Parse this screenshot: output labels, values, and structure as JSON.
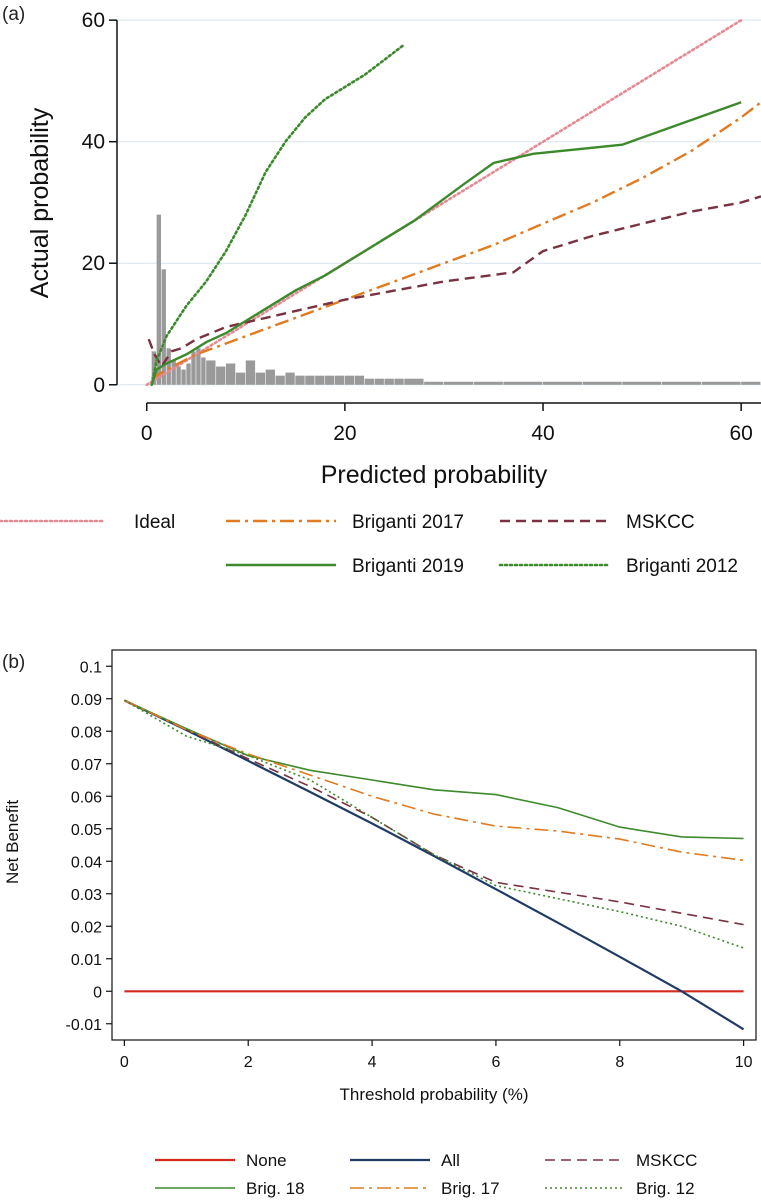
{
  "colors": {
    "ideal": "#e48a93",
    "briganti2017": "#e07b22",
    "mskcc": "#7a3140",
    "briganti2019": "#3d8a2c",
    "briganti2012": "#3d8a2c",
    "histogram": "#9a9a9a",
    "none": "#d42a1e",
    "all": "#1f3b66",
    "grid": "#d8e4ea"
  },
  "chart_data": [
    {
      "type": "line",
      "panel_label": "(a)",
      "xlabel": "Predicted probability",
      "ylabel": "Actual probability",
      "xlim": [
        -3,
        62
      ],
      "ylim": [
        -3,
        62
      ],
      "xticks": [
        0,
        20,
        40,
        60
      ],
      "yticks": [
        0,
        20,
        40,
        60
      ],
      "grid": true,
      "legend_position": "bottom",
      "series": [
        {
          "name": "Ideal",
          "style": "dotted",
          "color_key": "ideal",
          "x": [
            0,
            60
          ],
          "y": [
            0,
            60
          ]
        },
        {
          "name": "Briganti 2017",
          "style": "dashdot",
          "color_key": "briganti2017",
          "x": [
            0.5,
            2,
            5,
            10,
            15,
            20,
            25,
            30,
            35,
            40,
            45,
            50,
            55,
            60,
            62
          ],
          "y": [
            1,
            2.5,
            5,
            8,
            11,
            14,
            17,
            20,
            23,
            26.5,
            30,
            34,
            38.5,
            44,
            46.5
          ]
        },
        {
          "name": "MSKCC",
          "style": "dashed",
          "color_key": "mskcc",
          "x": [
            0.2,
            0.8,
            1.5,
            2.5,
            3.5,
            5,
            8,
            12,
            16,
            20,
            25,
            30,
            37,
            40,
            45,
            50,
            55,
            60,
            62
          ],
          "y": [
            7.5,
            5,
            3,
            5.5,
            6,
            7.5,
            9.5,
            11,
            12.5,
            14,
            15.5,
            17,
            18.5,
            22,
            24.5,
            26.5,
            28.5,
            30,
            31
          ]
        },
        {
          "name": "Briganti 2019",
          "style": "solid",
          "color_key": "briganti2019",
          "x": [
            0.5,
            1,
            2,
            4,
            6,
            8,
            12,
            15,
            18,
            22,
            27,
            32,
            35,
            39,
            48,
            60
          ],
          "y": [
            0,
            2.5,
            3.5,
            5,
            7,
            8.5,
            12.5,
            15.5,
            18,
            22,
            27,
            33,
            36.5,
            38,
            39.5,
            46.5
          ]
        },
        {
          "name": "Briganti 2012",
          "style": "dotted",
          "color_key": "briganti2012",
          "x": [
            0.5,
            1,
            2,
            4,
            6,
            8,
            10,
            12,
            14,
            16,
            18,
            20,
            22,
            24,
            26
          ],
          "y": [
            0,
            4,
            8,
            13,
            17,
            22,
            28,
            35,
            40,
            44,
            47,
            49,
            51,
            53.5,
            56
          ]
        }
      ],
      "histogram": {
        "bins": [
          0.5,
          1,
          1.5,
          2,
          2.5,
          3,
          3.5,
          4,
          4.5,
          5,
          5.5,
          6,
          7,
          8,
          9,
          10,
          11,
          12,
          13,
          14,
          15,
          16,
          17,
          18,
          19,
          20,
          21,
          22,
          23,
          24,
          25,
          26,
          28,
          30,
          33,
          36,
          40,
          44,
          48,
          52,
          56,
          60
        ],
        "heights": [
          5.5,
          28,
          19,
          6,
          4,
          3,
          2.5,
          3.5,
          5.5,
          6,
          4.5,
          4,
          3,
          3.5,
          2,
          4,
          2,
          2.5,
          1.5,
          2,
          1.5,
          1.5,
          1.5,
          1.5,
          1.5,
          1.5,
          1.5,
          1,
          1,
          1,
          1,
          1,
          0.5,
          0.5,
          0.5,
          0.5,
          0.5,
          0.5,
          0.5,
          0.5,
          0.5,
          0.5
        ]
      }
    },
    {
      "type": "line",
      "panel_label": "(b)",
      "xlabel": "Threshold probability (%)",
      "ylabel": "Net Benefit",
      "xlim": [
        -0.2,
        10.2
      ],
      "ylim": [
        -0.015,
        0.105
      ],
      "xticks": [
        0,
        2,
        4,
        6,
        8,
        10
      ],
      "yticks": [
        -0.01,
        0,
        0.01,
        0.02,
        0.03,
        0.04,
        0.05,
        0.06,
        0.07,
        0.08,
        0.09,
        0.1
      ],
      "ytick_labels": [
        "-0.01",
        "0",
        "0.01",
        "0.02",
        "0.03",
        "0.04",
        "0.05",
        "0.06",
        "0.07",
        "0.08",
        "0.09",
        "0.1"
      ],
      "grid": false,
      "legend_position": "bottom",
      "series": [
        {
          "name": "None",
          "style": "solid",
          "color_key": "none",
          "x": [
            0,
            10
          ],
          "y": [
            0,
            0
          ]
        },
        {
          "name": "All",
          "style": "solid",
          "color_key": "all",
          "x": [
            0,
            1,
            2,
            3,
            4,
            5,
            6,
            7,
            8,
            9,
            10
          ],
          "y": [
            0.0895,
            0.0804,
            0.0709,
            0.0613,
            0.0516,
            0.0416,
            0.0314,
            0.0211,
            0.0106,
            0.0,
            -0.0117
          ]
        },
        {
          "name": "MSKCC",
          "style": "dashed",
          "color_key": "mskcc",
          "x": [
            0,
            1,
            2,
            3,
            4,
            5,
            6,
            7,
            8,
            9,
            10
          ],
          "y": [
            0.0895,
            0.0805,
            0.0715,
            0.063,
            0.0535,
            0.042,
            0.0335,
            0.0305,
            0.0275,
            0.024,
            0.0205
          ]
        },
        {
          "name": "Brig. 18",
          "style": "solid",
          "color_key": "briganti2019",
          "x": [
            0,
            1,
            2,
            3,
            4,
            5,
            6,
            7,
            8,
            9,
            10
          ],
          "y": [
            0.0895,
            0.0808,
            0.0725,
            0.068,
            0.065,
            0.062,
            0.0605,
            0.0565,
            0.0505,
            0.0475,
            0.047
          ]
        },
        {
          "name": "Brig. 17",
          "style": "dashdot",
          "color_key": "briganti2017",
          "x": [
            0,
            1,
            2,
            3,
            4,
            5,
            6,
            7,
            8,
            9,
            10
          ],
          "y": [
            0.0895,
            0.0805,
            0.073,
            0.0665,
            0.06,
            0.0545,
            0.0508,
            0.0493,
            0.0468,
            0.0428,
            0.0403
          ]
        },
        {
          "name": "Brig. 12",
          "style": "dotted",
          "color_key": "briganti2012",
          "x": [
            0,
            1,
            2,
            3,
            4,
            5,
            6,
            7,
            8,
            9,
            10
          ],
          "y": [
            0.0895,
            0.0785,
            0.0725,
            0.065,
            0.0535,
            0.042,
            0.0325,
            0.0285,
            0.0245,
            0.02,
            0.0133
          ]
        }
      ]
    }
  ]
}
